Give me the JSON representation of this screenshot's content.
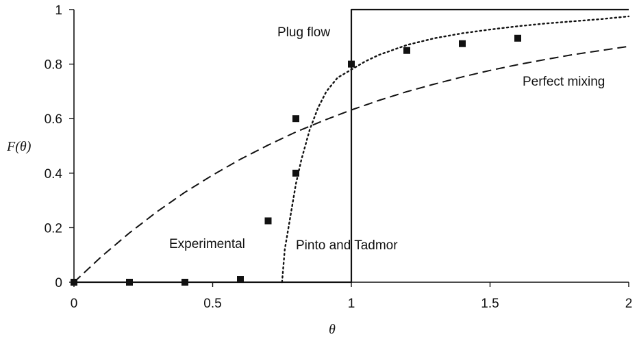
{
  "chart_data": {
    "type": "line",
    "xlabel": "θ",
    "ylabel": "F(θ)",
    "xlim": [
      0,
      2
    ],
    "ylim": [
      0,
      1
    ],
    "x_ticks": [
      "0",
      "0.5",
      "1",
      "1.5",
      "2"
    ],
    "y_ticks": [
      "0",
      "0.2",
      "0.4",
      "0.6",
      "0.8",
      "1"
    ],
    "grid": false,
    "annotations": {
      "plug_flow": "Plug flow",
      "perfect_mixing": "Perfect mixing",
      "pinto_tadmor": "Pinto and Tadmor",
      "experimental": "Experimental"
    },
    "series": [
      {
        "key": "plug_flow",
        "style": "solid",
        "x": [
          0,
          1,
          1,
          2
        ],
        "y": [
          0,
          0,
          1,
          1
        ]
      },
      {
        "key": "perfect_mixing",
        "style": "dashed",
        "x": [
          0,
          0.1,
          0.2,
          0.3,
          0.4,
          0.5,
          0.6,
          0.7,
          0.8,
          0.9,
          1.0,
          1.1,
          1.2,
          1.3,
          1.4,
          1.5,
          1.6,
          1.7,
          1.8,
          1.9,
          2.0
        ],
        "y": [
          0,
          0.095,
          0.181,
          0.259,
          0.33,
          0.393,
          0.451,
          0.503,
          0.551,
          0.593,
          0.632,
          0.667,
          0.699,
          0.727,
          0.753,
          0.777,
          0.798,
          0.817,
          0.835,
          0.85,
          0.865
        ]
      },
      {
        "key": "pinto_tadmor",
        "style": "dotted",
        "x": [
          0.75,
          0.76,
          0.78,
          0.8,
          0.82,
          0.85,
          0.88,
          0.91,
          0.95,
          1.0,
          1.05,
          1.1,
          1.2,
          1.3,
          1.4,
          1.5,
          1.6,
          1.7,
          1.8,
          1.9,
          2.0
        ],
        "y": [
          0,
          0.12,
          0.24,
          0.36,
          0.45,
          0.56,
          0.64,
          0.7,
          0.75,
          0.78,
          0.81,
          0.834,
          0.87,
          0.895,
          0.913,
          0.927,
          0.939,
          0.949,
          0.957,
          0.965,
          0.975
        ]
      }
    ],
    "points": {
      "key": "experimental",
      "marker": "square",
      "x": [
        0,
        0.2,
        0.4,
        0.6,
        0.7,
        0.8,
        0.8,
        1.0,
        1.2,
        1.4,
        1.6
      ],
      "y": [
        0,
        0,
        0,
        0.01,
        0.225,
        0.4,
        0.6,
        0.8,
        0.85,
        0.875,
        0.895
      ]
    }
  }
}
